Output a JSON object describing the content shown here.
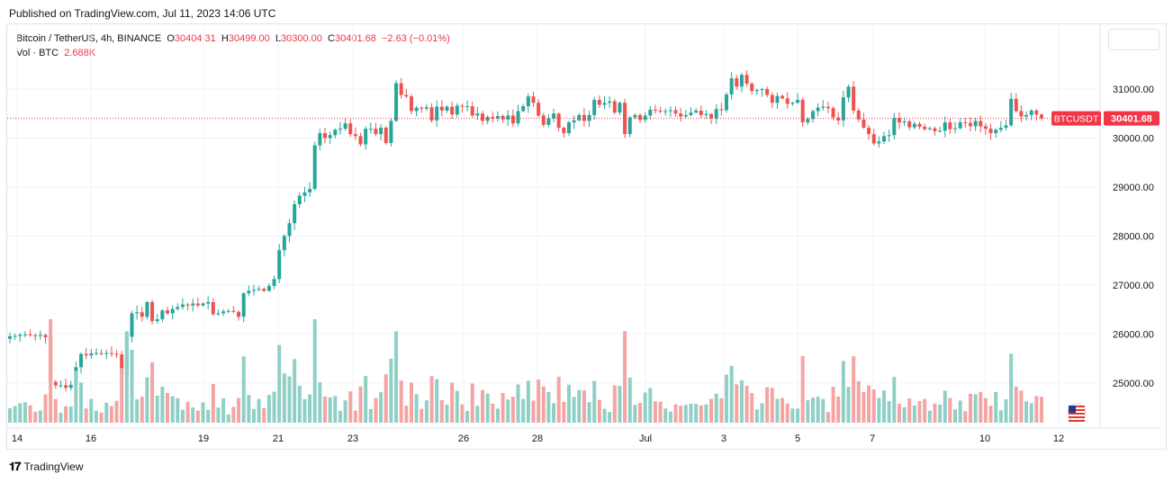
{
  "header": {
    "published": "Published on TradingView.com, Jul 11, 2023 14:06 UTC"
  },
  "legend": {
    "symbol": "Bitcoin / TetherUS, 4h, BINANCE",
    "o_label": "O",
    "o_value": "30404.31",
    "h_label": "H",
    "h_value": "30499.00",
    "l_label": "L",
    "l_value": "30300.00",
    "c_label": "C",
    "c_value": "30401.68",
    "change": "−2.63 (−0.01%)",
    "vol_label": "Vol · BTC",
    "vol_value": "2.688K"
  },
  "price_tag": {
    "symbol": "BTCUSDT",
    "price": "30401.68"
  },
  "footer": {
    "brand": "TradingView"
  },
  "colors": {
    "up": "#26a69a",
    "down": "#ef5350",
    "up_vol": "#8fd0c6",
    "down_vol": "#f4a5a3",
    "tag": "#f23645"
  },
  "chart_data": {
    "type": "candlestick",
    "symbol": "BTCUSDT",
    "interval": "4h",
    "last_price": 30401.68,
    "y_ticks": [
      "31000.00",
      "30000.00",
      "29000.00",
      "28000.00",
      "27000.00",
      "26000.00",
      "25000.00"
    ],
    "x_ticks": [
      "14",
      "16",
      "19",
      "21",
      "23",
      "26",
      "28",
      "Jul",
      "3",
      "5",
      "7",
      "10",
      "12"
    ],
    "ylim": [
      24300,
      31900
    ],
    "grid": true,
    "candles_close": [
      25950,
      25960,
      25985,
      25990,
      25970,
      25960,
      25980,
      25930,
      25020,
      24950,
      24950,
      24900,
      24960,
      25320,
      25590,
      25560,
      25600,
      25610,
      25590,
      25610,
      25590,
      25580,
      25180,
      25940,
      26420,
      26440,
      26350,
      26650,
      26260,
      26300,
      26480,
      26420,
      26510,
      26550,
      26600,
      26580,
      26620,
      26580,
      26620,
      26650,
      26400,
      26420,
      26460,
      26470,
      26450,
      26350,
      26830,
      26880,
      26900,
      26920,
      26880,
      26980,
      27120,
      27710,
      28000,
      28260,
      28650,
      28820,
      28890,
      28960,
      29850,
      30100,
      30000,
      30060,
      30170,
      30190,
      30300,
      30080,
      30040,
      29870,
      30190,
      30190,
      30080,
      30210,
      29900,
      30350,
      31120,
      30880,
      30850,
      30550,
      30620,
      30600,
      30630,
      30360,
      30640,
      30560,
      30640,
      30480,
      30660,
      30650,
      30650,
      30460,
      30500,
      30350,
      30430,
      30400,
      30450,
      30380,
      30460,
      30300,
      30550,
      30650,
      30850,
      30720,
      30460,
      30270,
      30400,
      30500,
      30210,
      30100,
      30320,
      30360,
      30470,
      30350,
      30470,
      30780,
      30680,
      30720,
      30750,
      30520,
      30720,
      30080,
      30420,
      30470,
      30370,
      30460,
      30580,
      30560,
      30550,
      30550,
      30570,
      30500,
      30440,
      30470,
      30520,
      30560,
      30470,
      30490,
      30400,
      30590,
      30570,
      30890,
      31220,
      31050,
      31290,
      31110,
      30960,
      30980,
      31000,
      30880,
      30720,
      30860,
      30810,
      30700,
      30720,
      30780,
      30320,
      30390,
      30550,
      30620,
      30640,
      30610,
      30420,
      30360,
      30830,
      31050,
      30560,
      30380,
      30210,
      30080,
      29890,
      29930,
      30040,
      30060,
      30410,
      30320,
      30340,
      30220,
      30290,
      30230,
      30180,
      30200,
      30140,
      30150,
      30320,
      30180,
      30200,
      30320,
      30310,
      30240,
      30350,
      30240,
      30190,
      30100,
      30170,
      30210,
      30260,
      30800,
      30550,
      30440,
      30470,
      30560,
      30480,
      30400
    ]
  }
}
